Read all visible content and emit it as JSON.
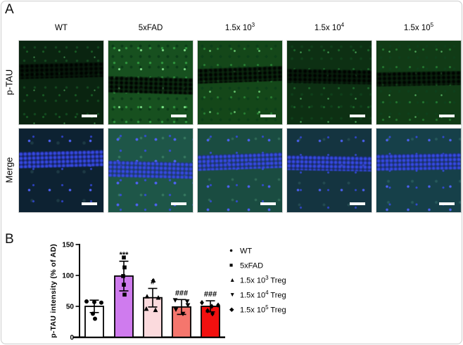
{
  "figure": {
    "panel_a_label": "A",
    "panel_b_label": "B"
  },
  "panel_a": {
    "columns": [
      {
        "base": "WT",
        "exp": ""
      },
      {
        "base": "5xFAD",
        "exp": ""
      },
      {
        "base": "1.5x 10",
        "exp": "3"
      },
      {
        "base": "1.5x 10",
        "exp": "4"
      },
      {
        "base": "1.5x 10",
        "exp": "5"
      }
    ],
    "rows": [
      {
        "label": "p-TAU"
      },
      {
        "label": "Merge"
      }
    ]
  },
  "chart_data": {
    "type": "bar",
    "title": "",
    "xlabel": "",
    "ylabel": "p-TAU intensity (% of AD)",
    "ylim": [
      0,
      150
    ],
    "yticks": [
      0,
      50,
      100,
      150
    ],
    "grid": false,
    "legend_position": "right",
    "categories": [
      "WT",
      "5xFAD",
      "1.5x 10^3 Treg",
      "1.5x 10^4 Treg",
      "1.5x 10^5 Treg"
    ],
    "values": [
      50,
      99,
      64,
      49,
      50
    ],
    "errors": [
      10,
      24,
      15,
      12,
      9
    ],
    "bar_colors": [
      "#ffffff",
      "#cf7bee",
      "#fbdadd",
      "#f5766d",
      "#f2100f"
    ],
    "significance": [
      "",
      "***",
      "#",
      "###",
      "###"
    ],
    "points": [
      [
        58,
        57,
        56,
        38,
        30
      ],
      [
        129,
        113,
        99,
        85,
        69
      ],
      [
        92,
        66,
        64,
        46,
        44
      ],
      [
        60,
        58,
        52,
        45,
        38
      ],
      [
        56,
        52,
        50,
        43,
        38
      ]
    ],
    "point_markers": [
      "circle",
      "square",
      "triangle-up",
      "triangle-down",
      "diamond"
    ],
    "legend": [
      {
        "marker": "circle",
        "base": "WT",
        "exp": "",
        "suffix": ""
      },
      {
        "marker": "square",
        "base": "5xFAD",
        "exp": "",
        "suffix": ""
      },
      {
        "marker": "triangle-up",
        "base": "1.5x 10",
        "exp": "3",
        "suffix": " Treg"
      },
      {
        "marker": "triangle-down",
        "base": "1.5x 10",
        "exp": "4",
        "suffix": " Treg"
      },
      {
        "marker": "diamond",
        "base": "1.5x 10",
        "exp": "5",
        "suffix": " Treg"
      }
    ]
  }
}
